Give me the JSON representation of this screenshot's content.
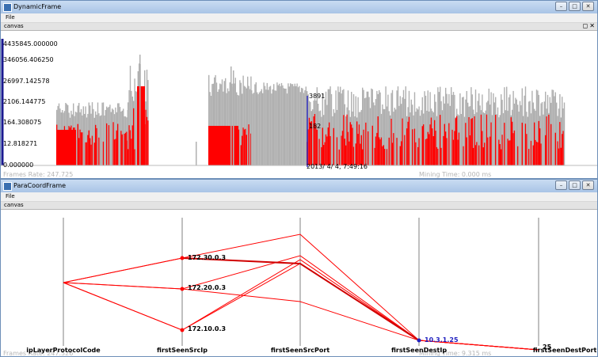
{
  "dynamic_frame": {
    "title": "DynamicFrame",
    "menu_file": "File",
    "canvas_label": "canvas",
    "y_ticks": [
      "4435845.000000",
      "346056.406250",
      "26997.142578",
      "2106.144775",
      "164.308075",
      "12.818271",
      "0.000000"
    ],
    "frame_rate": "Frames Rate: 247.725",
    "mining_time": "Mining Time: 0.000 ms",
    "cursor_top_value": "3891",
    "cursor_mid_value": "182",
    "cursor_time": "2013/ 4/ 4, 7:49:16"
  },
  "para_frame": {
    "title": "ParaCoordFrame",
    "menu_file": "File",
    "canvas_label": "canvas",
    "axes": [
      "ipLayerProtocolCode",
      "firstSeenSrcIp",
      "firstSeenSrcPort",
      "firstSeenDestIp",
      "firstSeenDestPort"
    ],
    "src_ips": [
      "172.30.0.3",
      "172.20.0.3",
      "172.10.0.3"
    ],
    "dest_ip": "10.3.1.25",
    "dest_port": "25",
    "frame_rate": "Frames Rate: 247.526",
    "mining_time": "Mining Time: 9.315 ms"
  },
  "window_controls": {
    "minimize": "–",
    "maximize": "□",
    "close": "✕"
  },
  "colors": {
    "red": "#ff0000",
    "gray": "#b0b0b0",
    "cursor": "#3030c0",
    "axis": "#808080"
  }
}
